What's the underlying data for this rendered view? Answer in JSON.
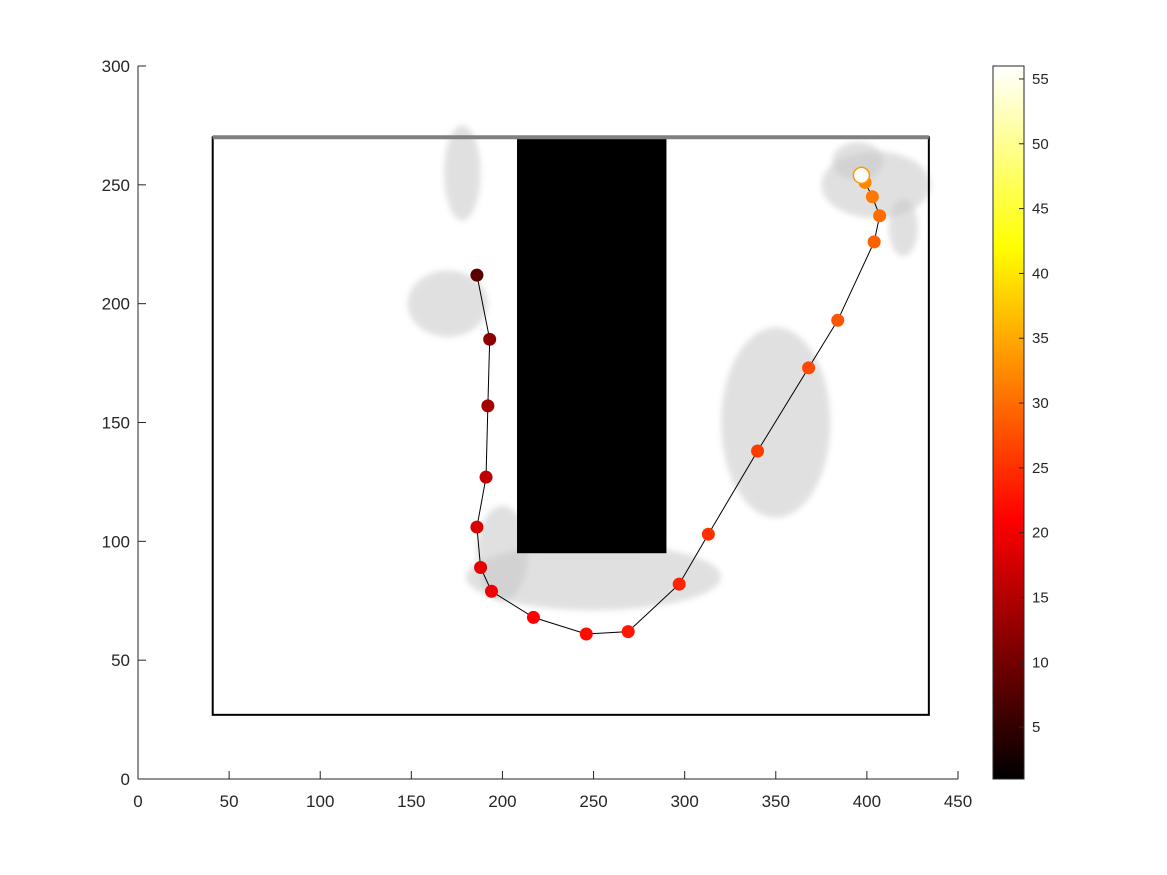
{
  "chart_data": {
    "type": "scatter",
    "title": "",
    "xlabel": "",
    "ylabel": "",
    "xlim": [
      0,
      450
    ],
    "ylim": [
      0,
      300
    ],
    "x_ticks": [
      0,
      50,
      100,
      150,
      200,
      250,
      300,
      350,
      400,
      450
    ],
    "y_ticks": [
      0,
      50,
      100,
      150,
      200,
      250,
      300
    ],
    "grid": false,
    "legend": "none",
    "background_map": {
      "description_free": true,
      "arena_border_rect": [
        41,
        27,
        434,
        270
      ],
      "obstacle_rect": [
        208,
        95,
        290,
        270
      ],
      "boundary_color": "#000000",
      "obstacle_color": "#000000"
    },
    "trajectory": {
      "line_color": "#000000",
      "points": [
        {
          "x": 186,
          "y": 212,
          "c": 8
        },
        {
          "x": 193,
          "y": 185,
          "c": 12
        },
        {
          "x": 192,
          "y": 157,
          "c": 14
        },
        {
          "x": 191,
          "y": 127,
          "c": 16
        },
        {
          "x": 186,
          "y": 106,
          "c": 18
        },
        {
          "x": 188,
          "y": 89,
          "c": 19
        },
        {
          "x": 194,
          "y": 79,
          "c": 20
        },
        {
          "x": 217,
          "y": 68,
          "c": 21
        },
        {
          "x": 246,
          "y": 61,
          "c": 22
        },
        {
          "x": 269,
          "y": 62,
          "c": 23
        },
        {
          "x": 297,
          "y": 82,
          "c": 24
        },
        {
          "x": 313,
          "y": 103,
          "c": 25
        },
        {
          "x": 340,
          "y": 138,
          "c": 26
        },
        {
          "x": 368,
          "y": 173,
          "c": 27
        },
        {
          "x": 384,
          "y": 193,
          "c": 28
        },
        {
          "x": 404,
          "y": 226,
          "c": 29
        },
        {
          "x": 407,
          "y": 237,
          "c": 30
        },
        {
          "x": 403,
          "y": 245,
          "c": 31
        },
        {
          "x": 399,
          "y": 251,
          "c": 32
        },
        {
          "x": 396,
          "y": 254,
          "c": 33
        },
        {
          "x": 397,
          "y": 254,
          "c": 56
        }
      ]
    },
    "colorbar": {
      "colormap": "hot",
      "range": [
        1,
        56
      ],
      "ticks": [
        5,
        10,
        15,
        20,
        25,
        30,
        35,
        40,
        45,
        50,
        55
      ]
    }
  }
}
